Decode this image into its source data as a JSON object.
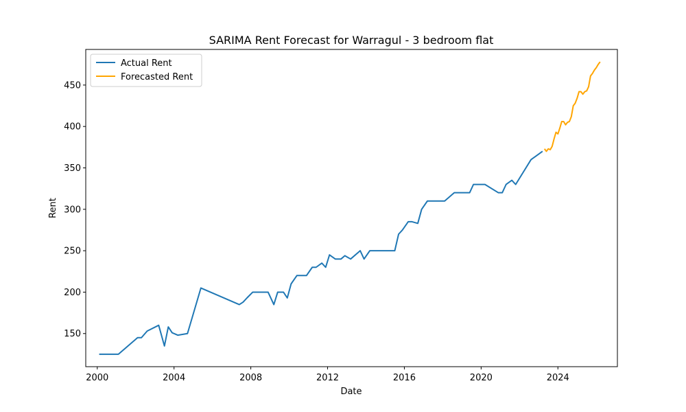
{
  "chart_data": {
    "type": "line",
    "title": "SARIMA Rent Forecast for Warragul - 3 bedroom flat",
    "xlabel": "Date",
    "ylabel": "Rent",
    "xlim": [
      1999.4,
      2027.1
    ],
    "ylim": [
      110,
      493
    ],
    "xticks": [
      2000,
      2004,
      2008,
      2012,
      2016,
      2020,
      2024
    ],
    "yticks": [
      150,
      200,
      250,
      300,
      350,
      400,
      450
    ],
    "grid": false,
    "legend_position": "top-left",
    "series": [
      {
        "name": "Actual Rent",
        "color": "#1f77b4",
        "x": [
          2000.1,
          2001.1,
          2002.1,
          2002.3,
          2002.6,
          2003.2,
          2003.5,
          2003.7,
          2003.9,
          2004.2,
          2004.7,
          2005.4,
          2007.4,
          2007.6,
          2007.8,
          2008.1,
          2008.9,
          2009.2,
          2009.4,
          2009.7,
          2009.9,
          2010.1,
          2010.4,
          2010.9,
          2011.2,
          2011.4,
          2011.7,
          2011.9,
          2012.1,
          2012.4,
          2012.7,
          2012.9,
          2013.2,
          2013.7,
          2013.9,
          2014.2,
          2015.5,
          2015.7,
          2015.9,
          2016.2,
          2016.4,
          2016.7,
          2016.9,
          2017.2,
          2018.1,
          2018.6,
          2019.4,
          2019.6,
          2020.2,
          2020.9,
          2021.1,
          2021.3,
          2021.6,
          2021.8,
          2022.6,
          2022.9,
          2023.2
        ],
        "y": [
          125,
          125,
          145,
          145,
          153,
          160,
          135,
          158,
          151,
          148,
          150,
          205,
          185,
          188,
          193,
          200,
          200,
          185,
          200,
          200,
          193,
          210,
          220,
          220,
          230,
          230,
          235,
          230,
          245,
          240,
          240,
          244,
          240,
          250,
          240,
          250,
          250,
          270,
          275,
          285,
          285,
          283,
          300,
          310,
          310,
          320,
          320,
          330,
          330,
          320,
          320,
          330,
          335,
          330,
          360,
          365,
          370
        ]
      },
      {
        "name": "Forecasted Rent",
        "color": "#ffa500",
        "x": [
          2023.3,
          2023.4,
          2023.5,
          2023.6,
          2023.7,
          2023.8,
          2023.9,
          2024.0,
          2024.1,
          2024.2,
          2024.3,
          2024.4,
          2024.5,
          2024.6,
          2024.7,
          2024.8,
          2024.9,
          2025.0,
          2025.1,
          2025.2,
          2025.3,
          2025.4,
          2025.5,
          2025.6,
          2025.7,
          2025.8,
          2025.9,
          2026.0,
          2026.1,
          2026.2
        ],
        "y": [
          373,
          370,
          373,
          372,
          376,
          385,
          393,
          391,
          398,
          406,
          406,
          402,
          405,
          406,
          412,
          425,
          428,
          434,
          442,
          442,
          439,
          442,
          443,
          448,
          461,
          464,
          468,
          471,
          475,
          478
        ]
      }
    ]
  }
}
